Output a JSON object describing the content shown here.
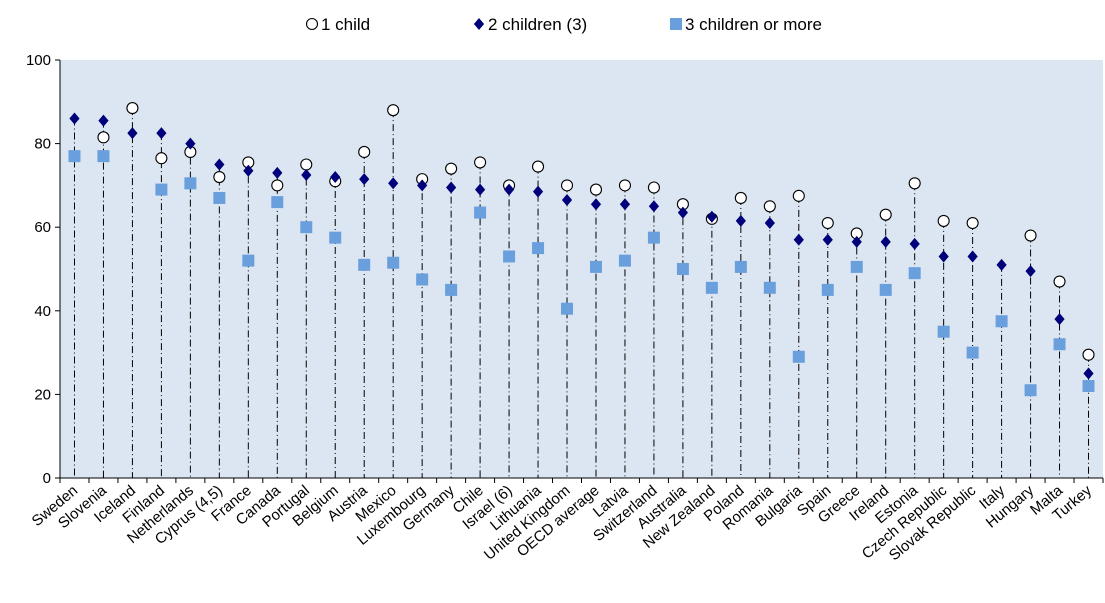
{
  "chart_data": {
    "type": "scatter",
    "ylim": [
      0,
      100
    ],
    "yticks": [
      0,
      20,
      40,
      60,
      80,
      100
    ],
    "grid": false,
    "legend_position": "top",
    "colors": {
      "plot_background": "#dce6f2",
      "one_child_marker": "#ffffff",
      "two_children": "#00007a",
      "three_children": "#6a9fdd",
      "drop_line": "#000000"
    },
    "categories": [
      "Sweden",
      "Slovenia",
      "Iceland",
      "Finland",
      "Netherlands",
      "Cyprus (4,5)",
      "France",
      "Canada",
      "Portugal",
      "Belgium",
      "Austria",
      "Mexico",
      "Luxembourg",
      "Germany",
      "Chile",
      "Israel (6)",
      "Lithuania",
      "United Kingdom",
      "OECD average",
      "Latvia",
      "Switzerland",
      "Australia",
      "New Zealand",
      "Poland",
      "Romania",
      "Bulgaria",
      "Spain",
      "Greece",
      "Ireland",
      "Estonia",
      "Czech Republic",
      "Slovak Republic",
      "Italy",
      "Hungary",
      "Malta",
      "Turkey"
    ],
    "series": [
      {
        "name": "1 child",
        "marker": "circle",
        "values": [
          null,
          81.5,
          88.5,
          76.5,
          78,
          72,
          75.5,
          70,
          75,
          71,
          78,
          88,
          71.5,
          74,
          75.5,
          70,
          74.5,
          70,
          69,
          70,
          69.5,
          65.5,
          62,
          67,
          65,
          67.5,
          61,
          58.5,
          63,
          70.5,
          61.5,
          61,
          null,
          58,
          47,
          29.5
        ]
      },
      {
        "name": "2 children (3)",
        "marker": "diamond",
        "values": [
          86,
          85.5,
          82.5,
          82.5,
          80,
          75,
          73.5,
          73,
          72.5,
          72,
          71.5,
          70.5,
          70,
          69.5,
          69,
          69,
          68.5,
          66.5,
          65.5,
          65.5,
          65,
          63.5,
          62.5,
          61.5,
          61,
          57,
          57,
          56.5,
          56.5,
          56,
          53,
          53,
          51,
          49.5,
          38,
          25
        ]
      },
      {
        "name": "3 children or more",
        "marker": "square",
        "values": [
          77,
          77,
          null,
          69,
          70.5,
          67,
          52,
          66,
          60,
          57.5,
          51,
          51.5,
          47.5,
          45,
          63.5,
          53,
          55,
          40.5,
          50.5,
          52,
          57.5,
          50,
          45.5,
          50.5,
          45.5,
          29,
          45,
          50.5,
          45,
          49,
          35,
          30,
          37.5,
          21,
          32,
          22
        ]
      }
    ]
  }
}
